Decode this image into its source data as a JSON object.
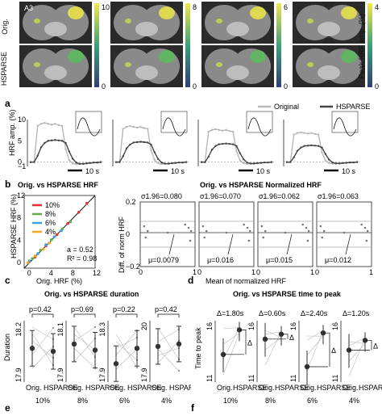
{
  "panel_letters": {
    "a": "a",
    "b": "b",
    "c": "c",
    "d": "d",
    "e": "e",
    "f": "f"
  },
  "brain": {
    "corner_label": "A3",
    "row_labels": [
      "Orig.",
      "HSPARSE"
    ],
    "colorbar_maxes": [
      "10",
      "8",
      "6",
      "4"
    ],
    "colorbar_min": "0",
    "colorbar_title": "Peak HRF amp. (%)"
  },
  "colors": {
    "cbar_top": "#f2e84b",
    "cbar_mid": "#3ea07a",
    "cbar_bot": "#2f3f7a",
    "original": "#b8b8b8",
    "hsparse": "#444444",
    "accent_red": "#e63232",
    "accent_green": "#5bb348",
    "accent_blue": "#3aa3e6",
    "accent_orange": "#f5a623"
  },
  "hrf": {
    "legend": [
      "Original",
      "HSPARSE"
    ],
    "ylabel": "HRF amp. (%)",
    "yticks": [
      "10",
      "5",
      "0",
      "−1"
    ],
    "scalebar": "10 s"
  },
  "scatter": {
    "title": "Orig. vs HSPARSE HRF",
    "xlabel": "Orig. HRF (%)",
    "ylabel": "HSPARSE HRF (%)",
    "xticks": [
      "0",
      "4",
      "8",
      "12"
    ],
    "yticks": [
      "0",
      "4",
      "8",
      "12"
    ],
    "legend": [
      "10%",
      "8%",
      "6%",
      "4%"
    ],
    "stats_a": "a = 0.52",
    "stats_r": "R² = 0.98"
  },
  "blandaltman": {
    "title": "Orig. vs HSPARSE Normalized HRF",
    "ylabel": "Diff. of norm HRF",
    "xlabel": "Mean of normalized HRF",
    "yticks": [
      "0.2",
      "0",
      "−0.2"
    ],
    "xticks": [
      "0",
      "1"
    ],
    "sigmas": [
      "σ1.96=0.080",
      "σ1.96=0.070",
      "σ1.96=0.062",
      "σ1.96=0.063"
    ],
    "mus": [
      "μ=0.0079",
      "μ=0.016",
      "μ=0.015",
      "μ=0.012"
    ]
  },
  "duration": {
    "title": "Orig. vs HSPARSE duration",
    "ylabel": "Duration",
    "pvals": [
      "p=0.42",
      "p=0.69",
      "p=0.22",
      "p=0.42"
    ],
    "ymax": [
      "18.2",
      "18.1",
      "18.3",
      "20"
    ],
    "ymin": [
      "17.9",
      "17.9",
      "17.9",
      "17.9"
    ],
    "xcats": [
      "Orig.",
      "HSPARSE"
    ],
    "levels": [
      "10%",
      "8%",
      "6%",
      "4%"
    ]
  },
  "ttp": {
    "title": "Orig. vs HSPARSE time to peak",
    "ylabel": "Time to peak",
    "deltas": [
      "Δ=1.80s",
      "Δ=0.60s",
      "Δ=2.40s",
      "Δ=1.20s"
    ],
    "delta_mark": "Δ",
    "ymax": "16",
    "ymin": "11",
    "xcats": [
      "Orig.",
      "HSPARSE"
    ],
    "levels": [
      "10%",
      "8%",
      "6%",
      "4%"
    ]
  },
  "chart_data": [
    {
      "type": "scatter",
      "title": "Orig. vs HSPARSE HRF",
      "xlabel": "Orig. HRF (%)",
      "ylabel": "HSPARSE HRF (%)",
      "xlim": [
        -1,
        12
      ],
      "ylim": [
        -1,
        12
      ],
      "series": [
        {
          "name": "10%",
          "color": "#e63232",
          "x": [
            1,
            3,
            5,
            7,
            9,
            10.5
          ],
          "y": [
            1,
            3,
            5,
            7,
            9,
            10.6
          ]
        },
        {
          "name": "8%",
          "color": "#5bb348",
          "x": [
            0.5,
            2,
            4,
            6,
            7.5
          ],
          "y": [
            0.7,
            2.2,
            4.1,
            6,
            7.3
          ]
        },
        {
          "name": "6%",
          "color": "#3aa3e6",
          "x": [
            0,
            1.5,
            3,
            4.5,
            5.8
          ],
          "y": [
            0.3,
            1.6,
            3.2,
            4.6,
            5.7
          ]
        },
        {
          "name": "4%",
          "color": "#f5a623",
          "x": [
            -0.3,
            1,
            2.5,
            3.6
          ],
          "y": [
            0,
            1.2,
            2.4,
            3.5
          ]
        }
      ]
    },
    {
      "type": "line",
      "title": "HRF amp.",
      "x": [
        0,
        1,
        2,
        3,
        4,
        5,
        6,
        7,
        8,
        9,
        10,
        11,
        12,
        13,
        14,
        15,
        16,
        17,
        18,
        19,
        20
      ],
      "series": [
        {
          "name": "Original",
          "values": [
            0,
            0,
            8.5,
            9,
            9.2,
            9,
            8.8,
            9,
            8.7,
            8.5,
            3,
            0.5,
            -0.3,
            -0.5,
            -0.4,
            -0.3,
            -0.2,
            -0.2,
            -0.1,
            -0.1,
            0
          ]
        },
        {
          "name": "HSPARSE",
          "values": [
            0,
            0,
            1.5,
            3.5,
            4.5,
            5,
            5.1,
            5.2,
            5.1,
            5,
            4.5,
            2.5,
            0.8,
            -0.1,
            -0.4,
            -0.4,
            -0.3,
            -0.2,
            -0.1,
            -0.1,
            0
          ]
        }
      ]
    }
  ]
}
